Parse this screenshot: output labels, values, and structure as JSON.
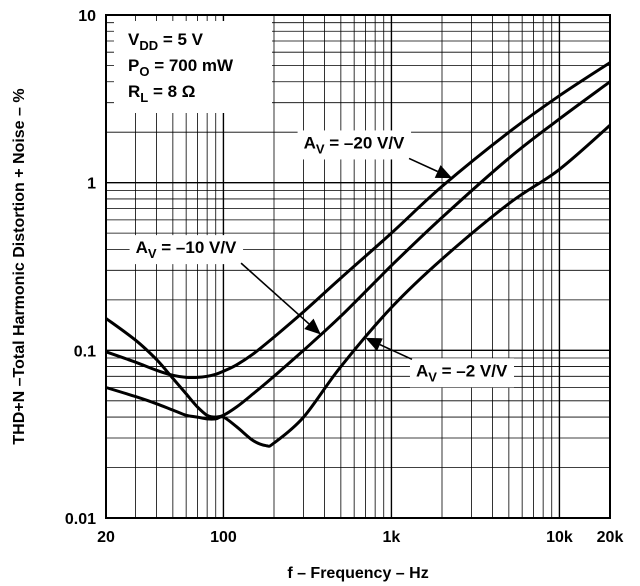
{
  "chart_data": {
    "type": "line",
    "x_scale": "log",
    "y_scale": "log",
    "xlim": [
      20,
      20000
    ],
    "ylim": [
      0.01,
      10
    ],
    "grid": true,
    "xlabel": "f – Frequency – Hz",
    "ylabel": "THD+N –Total Harmonic Distortion + Noise – %",
    "x_ticks": [
      {
        "value": 20,
        "label": "20"
      },
      {
        "value": 100,
        "label": "100"
      },
      {
        "value": 1000,
        "label": "1k"
      },
      {
        "value": 10000,
        "label": "10k"
      },
      {
        "value": 20000,
        "label": "20k"
      }
    ],
    "y_ticks": [
      {
        "value": 10,
        "label": "10"
      },
      {
        "value": 1,
        "label": "1"
      },
      {
        "value": 0.1,
        "label": "0.1"
      },
      {
        "value": 0.01,
        "label": "0.01"
      }
    ],
    "conditions": [
      {
        "name": "V",
        "sub": "DD",
        "text": " = 5 V"
      },
      {
        "name": "P",
        "sub": "O",
        "text": " = 700 mW"
      },
      {
        "name": "R",
        "sub": "L",
        "text": " = 8 Ω"
      }
    ],
    "series": [
      {
        "name": "AV = –20 V/V",
        "label_main": "A",
        "label_sub": "V",
        "label_rest": " = –20 V/V",
        "x": [
          20,
          30,
          40,
          50,
          60,
          70,
          80,
          90,
          100,
          120,
          150,
          200,
          300,
          500,
          1000,
          2000,
          5000,
          10000,
          20000
        ],
        "y": [
          0.098,
          0.085,
          0.076,
          0.071,
          0.069,
          0.069,
          0.07,
          0.072,
          0.075,
          0.082,
          0.095,
          0.12,
          0.17,
          0.27,
          0.5,
          0.95,
          2.0,
          3.3,
          5.2
        ]
      },
      {
        "name": "AV = –10 V/V",
        "label_main": "A",
        "label_sub": "V",
        "label_rest": " = –10 V/V",
        "x": [
          20,
          30,
          40,
          50,
          60,
          70,
          80,
          90,
          100,
          120,
          150,
          200,
          300,
          500,
          1000,
          2000,
          5000,
          10000,
          20000
        ],
        "y": [
          0.155,
          0.115,
          0.088,
          0.068,
          0.055,
          0.046,
          0.041,
          0.04,
          0.041,
          0.046,
          0.055,
          0.07,
          0.1,
          0.16,
          0.32,
          0.62,
          1.4,
          2.4,
          4.0
        ]
      },
      {
        "name": "AV = –2 V/V",
        "label_main": "A",
        "label_sub": "V",
        "label_rest": " = –2 V/V",
        "x": [
          20,
          30,
          40,
          50,
          60,
          70,
          80,
          90,
          100,
          120,
          150,
          180,
          200,
          300,
          500,
          1000,
          2000,
          5000,
          10000,
          20000
        ],
        "y": [
          0.06,
          0.053,
          0.048,
          0.044,
          0.041,
          0.04,
          0.039,
          0.039,
          0.04,
          0.035,
          0.029,
          0.027,
          0.028,
          0.04,
          0.08,
          0.18,
          0.35,
          0.75,
          1.2,
          2.2
        ]
      }
    ],
    "annotations": [
      {
        "series": 0,
        "at_x": 2300,
        "text_x": 300,
        "text_y": 1.6
      },
      {
        "series": 1,
        "at_x": 380,
        "text_x": 30,
        "text_y": 0.38
      },
      {
        "series": 2,
        "at_x": 700,
        "text_x": 1400,
        "text_y": 0.07
      }
    ]
  }
}
